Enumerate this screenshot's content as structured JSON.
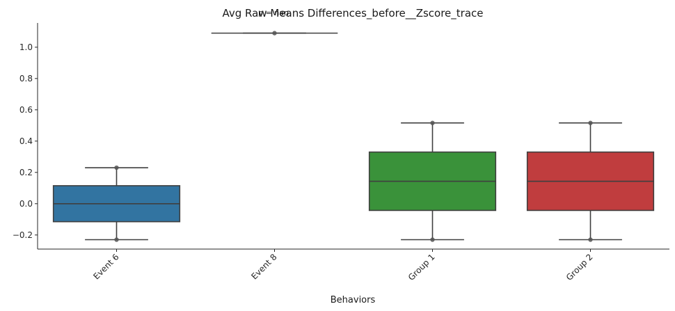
{
  "chart_data": {
    "type": "box",
    "title": "Avg Raw Means Differences_before__Zscore_trace",
    "annotation": "p = nan",
    "xlabel": "Behaviors",
    "ylabel": "",
    "ylim": [
      -0.29,
      1.155
    ],
    "yticks": [
      "−0.2",
      "0.0",
      "0.2",
      "0.4",
      "0.6",
      "0.8",
      "1.0"
    ],
    "ytick_values": [
      -0.2,
      0.0,
      0.2,
      0.4,
      0.6,
      0.8,
      1.0
    ],
    "grid": false,
    "categories": [
      "Event 6",
      "Event 8",
      "Group 1",
      "Group 2"
    ],
    "boxes": [
      {
        "name": "Event 6",
        "color": "#3274a1",
        "whisker_low": -0.23,
        "q1": -0.115,
        "median": 0.0,
        "q3": 0.115,
        "whisker_high": 0.23,
        "points": [
          -0.23,
          0.23
        ]
      },
      {
        "name": "Event 8",
        "color": "#e1812c",
        "whisker_low": 1.09,
        "q1": 1.09,
        "median": 1.09,
        "q3": 1.09,
        "whisker_high": 1.09,
        "points": [
          1.09
        ]
      },
      {
        "name": "Group 1",
        "color": "#3a923a",
        "whisker_low": -0.23,
        "q1": -0.043,
        "median": 0.143,
        "q3": 0.33,
        "whisker_high": 0.516,
        "points": [
          -0.23,
          0.516
        ]
      },
      {
        "name": "Group 2",
        "color": "#c03d3e",
        "whisker_low": -0.23,
        "q1": -0.043,
        "median": 0.143,
        "q3": 0.33,
        "whisker_high": 0.516,
        "points": [
          -0.23,
          0.516
        ]
      }
    ]
  }
}
